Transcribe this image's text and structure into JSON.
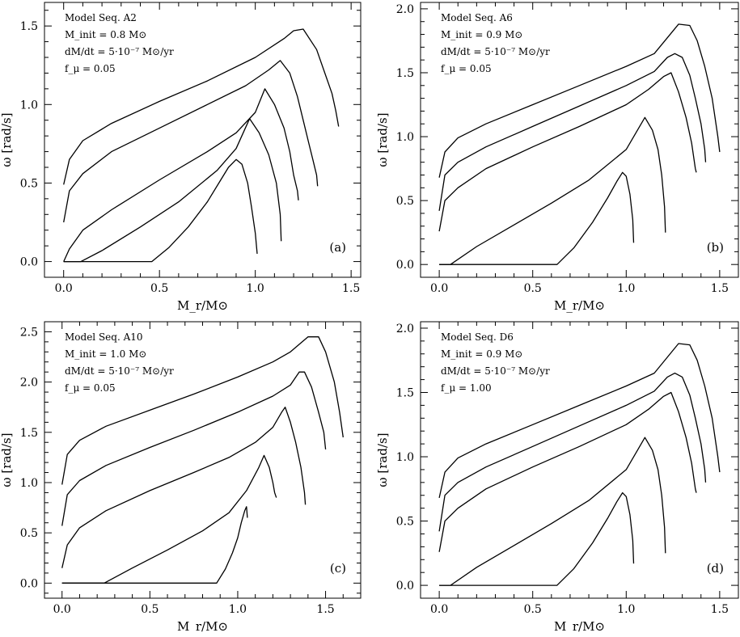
{
  "colors": {
    "line": "#000000",
    "background": "#ffffff"
  },
  "chart_data": [
    {
      "type": "line",
      "panel_label": "(a)",
      "annotations": [
        "Model Seq. A2",
        "M_init = 0.8 M⊙",
        "dM/dt = 5·10⁻⁷ M⊙/yr",
        "f_μ = 0.05"
      ],
      "xlabel": "M_r/M⊙",
      "ylabel": "ω [rad/s]",
      "xlim": [
        -0.1,
        1.55
      ],
      "ylim": [
        -0.1,
        1.65
      ],
      "x_ticks": [
        0.0,
        0.5,
        1.0,
        1.5
      ],
      "x_tick_labels": [
        "0.0",
        "0.5",
        "1.0",
        "1.5"
      ],
      "y_ticks": [
        0.0,
        0.5,
        1.0,
        1.5
      ],
      "y_tick_labels": [
        "0.0",
        "0.5",
        "1.0",
        "1.5"
      ],
      "grid": false,
      "series": [
        {
          "x": [
            0.0,
            0.03,
            0.1,
            0.25,
            0.5,
            0.75,
            1.0,
            1.15,
            1.2,
            1.25,
            1.32,
            1.36,
            1.4,
            1.42,
            1.435
          ],
          "y": [
            0.49,
            0.65,
            0.77,
            0.88,
            1.02,
            1.15,
            1.3,
            1.42,
            1.47,
            1.48,
            1.35,
            1.21,
            1.07,
            0.96,
            0.86
          ]
        },
        {
          "x": [
            0.0,
            0.03,
            0.1,
            0.25,
            0.5,
            0.75,
            0.95,
            1.07,
            1.13,
            1.18,
            1.22,
            1.25,
            1.28,
            1.3,
            1.32,
            1.325
          ],
          "y": [
            0.25,
            0.45,
            0.56,
            0.7,
            0.85,
            1.0,
            1.12,
            1.22,
            1.28,
            1.2,
            1.05,
            0.9,
            0.75,
            0.65,
            0.55,
            0.48
          ]
        },
        {
          "x": [
            0.0,
            0.03,
            0.1,
            0.25,
            0.5,
            0.75,
            0.9,
            1.0,
            1.05,
            1.1,
            1.15,
            1.18,
            1.2,
            1.22,
            1.225
          ],
          "y": [
            0.0,
            0.08,
            0.2,
            0.33,
            0.52,
            0.7,
            0.82,
            0.95,
            1.1,
            1.0,
            0.85,
            0.7,
            0.55,
            0.45,
            0.39
          ]
        },
        {
          "x": [
            0.0,
            0.09,
            0.2,
            0.4,
            0.6,
            0.8,
            0.9,
            0.97,
            1.02,
            1.07,
            1.11,
            1.13,
            1.135
          ],
          "y": [
            0.0,
            0.0,
            0.07,
            0.22,
            0.38,
            0.58,
            0.72,
            0.91,
            0.82,
            0.68,
            0.5,
            0.3,
            0.13
          ]
        },
        {
          "x": [
            0.0,
            0.46,
            0.55,
            0.65,
            0.75,
            0.82,
            0.86,
            0.9,
            0.93,
            0.96,
            0.98,
            1.0,
            1.01
          ],
          "y": [
            0.0,
            0.0,
            0.09,
            0.22,
            0.38,
            0.52,
            0.6,
            0.65,
            0.62,
            0.5,
            0.35,
            0.18,
            0.05
          ]
        }
      ]
    },
    {
      "type": "line",
      "panel_label": "(b)",
      "annotations": [
        "Model Seq. A6",
        "M_init = 0.9 M⊙",
        "dM/dt = 5·10⁻⁷ M⊙/yr",
        "f_μ = 0.05"
      ],
      "xlabel": "M_r/M⊙",
      "ylabel": "ω [rad/s]",
      "xlim": [
        -0.1,
        1.6
      ],
      "ylim": [
        -0.1,
        2.05
      ],
      "x_ticks": [
        0.0,
        0.5,
        1.0,
        1.5
      ],
      "x_tick_labels": [
        "0.0",
        "0.5",
        "1.0",
        "1.5"
      ],
      "y_ticks": [
        0.0,
        0.5,
        1.0,
        1.5,
        2.0
      ],
      "y_tick_labels": [
        "0.0",
        "0.5",
        "1.0",
        "1.5",
        "2.0"
      ],
      "grid": false,
      "series": [
        {
          "x": [
            0.0,
            0.03,
            0.1,
            0.25,
            0.5,
            0.75,
            1.0,
            1.15,
            1.28,
            1.34,
            1.38,
            1.42,
            1.46,
            1.49,
            1.5
          ],
          "y": [
            0.68,
            0.88,
            0.99,
            1.1,
            1.25,
            1.4,
            1.55,
            1.65,
            1.88,
            1.87,
            1.75,
            1.55,
            1.3,
            1.0,
            0.88
          ]
        },
        {
          "x": [
            0.0,
            0.03,
            0.1,
            0.25,
            0.5,
            0.75,
            1.0,
            1.15,
            1.22,
            1.26,
            1.3,
            1.34,
            1.37,
            1.4,
            1.42,
            1.425
          ],
          "y": [
            0.42,
            0.7,
            0.8,
            0.92,
            1.08,
            1.24,
            1.4,
            1.51,
            1.62,
            1.65,
            1.62,
            1.48,
            1.3,
            1.1,
            0.9,
            0.8
          ]
        },
        {
          "x": [
            0.0,
            0.03,
            0.1,
            0.25,
            0.5,
            0.75,
            1.0,
            1.12,
            1.2,
            1.24,
            1.28,
            1.32,
            1.35,
            1.37,
            1.375
          ],
          "y": [
            0.26,
            0.5,
            0.6,
            0.75,
            0.92,
            1.08,
            1.25,
            1.37,
            1.47,
            1.5,
            1.35,
            1.15,
            0.95,
            0.75,
            0.72
          ]
        },
        {
          "x": [
            0.0,
            0.06,
            0.2,
            0.4,
            0.6,
            0.8,
            1.0,
            1.06,
            1.1,
            1.14,
            1.17,
            1.19,
            1.205,
            1.21
          ],
          "y": [
            0.0,
            0.0,
            0.14,
            0.31,
            0.48,
            0.66,
            0.9,
            1.05,
            1.15,
            1.05,
            0.9,
            0.7,
            0.45,
            0.25
          ]
        },
        {
          "x": [
            0.0,
            0.63,
            0.72,
            0.82,
            0.9,
            0.95,
            0.98,
            1.0,
            1.02,
            1.035,
            1.04
          ],
          "y": [
            0.0,
            0.0,
            0.13,
            0.33,
            0.52,
            0.65,
            0.72,
            0.69,
            0.55,
            0.35,
            0.17
          ]
        }
      ]
    },
    {
      "type": "line",
      "panel_label": "(c)",
      "annotations": [
        "Model Seq. A10",
        "M_init = 1.0 M⊙",
        "dM/dt = 5·10⁻⁷ M⊙/yr",
        "f_μ = 0.05"
      ],
      "xlabel": "M_r/M⊙",
      "ylabel": "ω [rad/s]",
      "xlim": [
        -0.1,
        1.7
      ],
      "ylim": [
        -0.15,
        2.6
      ],
      "x_ticks": [
        0.0,
        0.5,
        1.0,
        1.5
      ],
      "x_tick_labels": [
        "0.0",
        "0.5",
        "1.0",
        "1.5"
      ],
      "y_ticks": [
        0.0,
        0.5,
        1.0,
        1.5,
        2.0,
        2.5
      ],
      "y_tick_labels": [
        "0.0",
        "0.5",
        "1.0",
        "1.5",
        "2.0",
        "2.5"
      ],
      "grid": false,
      "series": [
        {
          "x": [
            0.0,
            0.03,
            0.1,
            0.25,
            0.5,
            0.75,
            1.0,
            1.2,
            1.3,
            1.4,
            1.46,
            1.5,
            1.55,
            1.58,
            1.6
          ],
          "y": [
            0.98,
            1.28,
            1.42,
            1.56,
            1.72,
            1.88,
            2.05,
            2.2,
            2.3,
            2.45,
            2.45,
            2.3,
            2.0,
            1.7,
            1.45
          ]
        },
        {
          "x": [
            0.0,
            0.03,
            0.1,
            0.25,
            0.5,
            0.75,
            1.0,
            1.2,
            1.3,
            1.35,
            1.38,
            1.42,
            1.46,
            1.49,
            1.5
          ],
          "y": [
            0.57,
            0.88,
            1.02,
            1.17,
            1.35,
            1.52,
            1.7,
            1.86,
            1.97,
            2.1,
            2.1,
            1.95,
            1.7,
            1.5,
            1.33
          ]
        },
        {
          "x": [
            0.0,
            0.03,
            0.1,
            0.25,
            0.5,
            0.75,
            0.95,
            1.1,
            1.2,
            1.25,
            1.27,
            1.3,
            1.33,
            1.36,
            1.38,
            1.385
          ],
          "y": [
            0.15,
            0.38,
            0.55,
            0.72,
            0.92,
            1.1,
            1.25,
            1.4,
            1.55,
            1.7,
            1.75,
            1.6,
            1.4,
            1.15,
            0.9,
            0.78
          ]
        },
        {
          "x": [
            0.0,
            0.24,
            0.4,
            0.6,
            0.8,
            0.95,
            1.05,
            1.12,
            1.15,
            1.18,
            1.2,
            1.21,
            1.22
          ],
          "y": [
            0.0,
            0.0,
            0.15,
            0.33,
            0.52,
            0.7,
            0.92,
            1.15,
            1.27,
            1.15,
            1.0,
            0.9,
            0.85
          ]
        },
        {
          "x": [
            0.0,
            0.88,
            0.93,
            0.97,
            1.0,
            1.02,
            1.04,
            1.05,
            1.055
          ],
          "y": [
            0.0,
            0.0,
            0.14,
            0.3,
            0.45,
            0.6,
            0.72,
            0.76,
            0.65
          ]
        }
      ]
    },
    {
      "type": "line",
      "panel_label": "(d)",
      "annotations": [
        "Model Seq. D6",
        "M_init = 0.9 M⊙",
        "dM/dt = 5·10⁻⁷ M⊙/yr",
        "f_μ = 1.00"
      ],
      "xlabel": "M_r/M⊙",
      "ylabel": "ω [rad/s]",
      "xlim": [
        -0.1,
        1.6
      ],
      "ylim": [
        -0.1,
        2.05
      ],
      "x_ticks": [
        0.0,
        0.5,
        1.0,
        1.5
      ],
      "x_tick_labels": [
        "0.0",
        "0.5",
        "1.0",
        "1.5"
      ],
      "y_ticks": [
        0.0,
        0.5,
        1.0,
        1.5,
        2.0
      ],
      "y_tick_labels": [
        "0.0",
        "0.5",
        "1.0",
        "1.5",
        "2.0"
      ],
      "grid": false,
      "series": [
        {
          "x": [
            0.0,
            0.03,
            0.1,
            0.25,
            0.5,
            0.75,
            1.0,
            1.15,
            1.28,
            1.34,
            1.38,
            1.42,
            1.46,
            1.49,
            1.5
          ],
          "y": [
            0.68,
            0.88,
            0.99,
            1.1,
            1.25,
            1.4,
            1.55,
            1.65,
            1.88,
            1.87,
            1.75,
            1.55,
            1.3,
            1.0,
            0.88
          ]
        },
        {
          "x": [
            0.0,
            0.03,
            0.1,
            0.25,
            0.5,
            0.75,
            1.0,
            1.15,
            1.22,
            1.26,
            1.3,
            1.34,
            1.37,
            1.4,
            1.42,
            1.425
          ],
          "y": [
            0.42,
            0.7,
            0.8,
            0.92,
            1.08,
            1.24,
            1.4,
            1.51,
            1.62,
            1.65,
            1.62,
            1.48,
            1.3,
            1.1,
            0.9,
            0.8
          ]
        },
        {
          "x": [
            0.0,
            0.03,
            0.1,
            0.25,
            0.5,
            0.75,
            1.0,
            1.12,
            1.2,
            1.24,
            1.28,
            1.32,
            1.35,
            1.37,
            1.375
          ],
          "y": [
            0.26,
            0.5,
            0.6,
            0.75,
            0.92,
            1.08,
            1.25,
            1.37,
            1.47,
            1.5,
            1.35,
            1.15,
            0.95,
            0.75,
            0.72
          ]
        },
        {
          "x": [
            0.0,
            0.06,
            0.2,
            0.4,
            0.6,
            0.8,
            1.0,
            1.06,
            1.1,
            1.14,
            1.17,
            1.19,
            1.205,
            1.21
          ],
          "y": [
            0.0,
            0.0,
            0.14,
            0.31,
            0.48,
            0.66,
            0.9,
            1.05,
            1.15,
            1.05,
            0.9,
            0.7,
            0.45,
            0.25
          ]
        },
        {
          "x": [
            0.0,
            0.63,
            0.72,
            0.82,
            0.9,
            0.95,
            0.98,
            1.0,
            1.02,
            1.035,
            1.04
          ],
          "y": [
            0.0,
            0.0,
            0.13,
            0.33,
            0.52,
            0.65,
            0.72,
            0.69,
            0.55,
            0.35,
            0.17
          ]
        }
      ]
    }
  ]
}
